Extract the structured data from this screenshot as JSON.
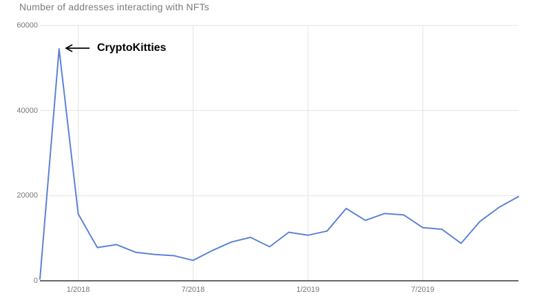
{
  "chart": {
    "title": "Number of addresses interacting with NFTs",
    "annotation": {
      "label": "CryptoKitties",
      "points_to": "12/2017 peak"
    },
    "colors": {
      "line": "#5b82d6",
      "grid": "#e3e3e3",
      "axis": "#333333",
      "title_text": "#7a7a7a",
      "tick_text": "#757575",
      "annotation_text": "#000000"
    }
  },
  "chart_data": {
    "type": "line",
    "title": "Number of addresses interacting with NFTs",
    "xlabel": "",
    "ylabel": "",
    "x": [
      "11/2017",
      "12/2017",
      "1/2018",
      "2/2018",
      "3/2018",
      "4/2018",
      "5/2018",
      "6/2018",
      "7/2018",
      "8/2018",
      "9/2018",
      "10/2018",
      "11/2018",
      "12/2018",
      "1/2019",
      "2/2019",
      "3/2019",
      "4/2019",
      "5/2019",
      "6/2019",
      "7/2019",
      "8/2019",
      "9/2019",
      "10/2019",
      "11/2019",
      "12/2019"
    ],
    "series": [
      {
        "name": "Number of addresses interacting with NFTs",
        "values": [
          400,
          54500,
          15700,
          7800,
          8500,
          6700,
          6200,
          5900,
          4800,
          7100,
          9100,
          10200,
          8000,
          11400,
          10700,
          11700,
          17000,
          14200,
          15800,
          15500,
          12500,
          12100,
          8800,
          14000,
          17300,
          19800
        ]
      }
    ],
    "ylim": [
      0,
      60000
    ],
    "y_ticks": [
      {
        "label": "0",
        "value": 0
      },
      {
        "label": "20000",
        "value": 20000
      },
      {
        "label": "40000",
        "value": 40000
      },
      {
        "label": "60000",
        "value": 60000
      }
    ],
    "x_ticks": [
      {
        "label": "1/2018",
        "index": 2
      },
      {
        "label": "7/2018",
        "index": 8
      },
      {
        "label": "1/2019",
        "index": 14
      },
      {
        "label": "7/2019",
        "index": 20
      }
    ],
    "grid": true,
    "legend_position": "none",
    "annotations": [
      {
        "label": "CryptoKitties",
        "x": "12/2017",
        "y": 54500
      }
    ]
  }
}
